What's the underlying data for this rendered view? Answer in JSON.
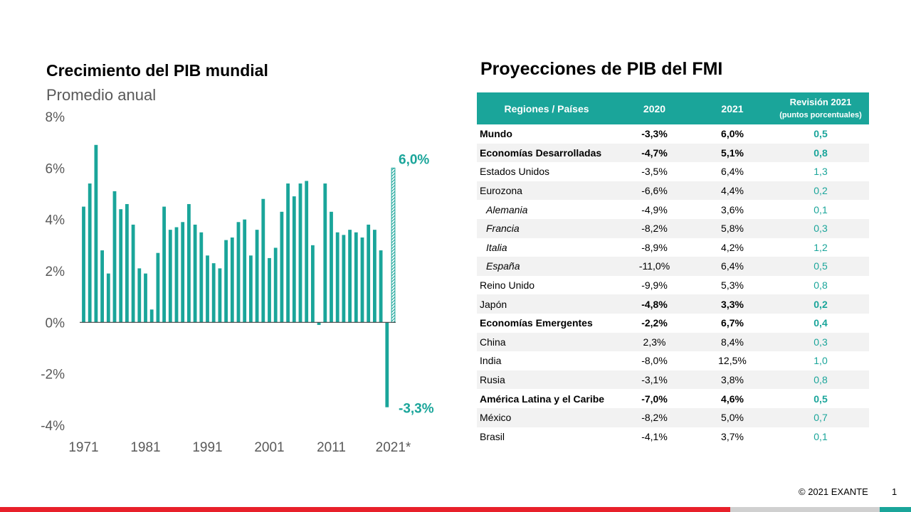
{
  "left": {
    "title": "Crecimiento del PIB mundial",
    "subtitle": "Promedio anual"
  },
  "chart_data": {
    "type": "bar",
    "title": "Crecimiento del PIB mundial",
    "subtitle": "Promedio anual",
    "ylim": [
      -4,
      8
    ],
    "yticks": [
      "8%",
      "6%",
      "4%",
      "2%",
      "0%",
      "-2%",
      "-4%"
    ],
    "ytick_values": [
      8,
      6,
      4,
      2,
      0,
      -2,
      -4
    ],
    "xtick_labels": [
      "1971",
      "1981",
      "1991",
      "2001",
      "2011",
      "2021*"
    ],
    "xtick_years": [
      1971,
      1981,
      1991,
      2001,
      2011,
      2021
    ],
    "grid": false,
    "color": "#1aa59a",
    "years": [
      1971,
      1972,
      1973,
      1974,
      1975,
      1976,
      1977,
      1978,
      1979,
      1980,
      1981,
      1982,
      1983,
      1984,
      1985,
      1986,
      1987,
      1988,
      1989,
      1990,
      1991,
      1992,
      1993,
      1994,
      1995,
      1996,
      1997,
      1998,
      1999,
      2000,
      2001,
      2002,
      2003,
      2004,
      2005,
      2006,
      2007,
      2008,
      2009,
      2010,
      2011,
      2012,
      2013,
      2014,
      2015,
      2016,
      2017,
      2018,
      2019,
      2020,
      2021
    ],
    "values": [
      4.5,
      5.4,
      6.9,
      2.8,
      1.9,
      5.1,
      4.4,
      4.6,
      3.8,
      2.1,
      1.9,
      0.5,
      2.7,
      4.5,
      3.6,
      3.7,
      3.9,
      4.6,
      3.8,
      3.5,
      2.6,
      2.3,
      2.1,
      3.2,
      3.3,
      3.9,
      4.0,
      2.6,
      3.6,
      4.8,
      2.5,
      2.9,
      4.3,
      5.4,
      4.9,
      5.4,
      5.5,
      3.0,
      -0.1,
      5.4,
      4.3,
      3.5,
      3.4,
      3.6,
      3.5,
      3.3,
      3.8,
      3.6,
      2.8,
      -3.3,
      6.0
    ],
    "projected_year": 2021,
    "annotations": [
      {
        "year": 2021,
        "label": "6,0%"
      },
      {
        "year": 2020,
        "label": "-3,3%"
      }
    ]
  },
  "table": {
    "title": "Proyecciones de PIB del FMI",
    "headers": {
      "region": "Regiones / Países",
      "y2020": "2020",
      "y2021": "2021",
      "revision": "Revisión 2021",
      "revision_sub": "(puntos porcentuales)"
    },
    "rows": [
      {
        "name": "Mundo",
        "v2020": "-3,3%",
        "v2021": "6,0%",
        "rev": "0,5",
        "bold": true,
        "sub": false
      },
      {
        "name": "Economías Desarrolladas",
        "v2020": "-4,7%",
        "v2021": "5,1%",
        "rev": "0,8",
        "bold": true,
        "sub": false
      },
      {
        "name": "Estados Unidos",
        "v2020": "-3,5%",
        "v2021": "6,4%",
        "rev": "1,3",
        "bold": false,
        "sub": false
      },
      {
        "name": "Eurozona",
        "v2020": "-6,6%",
        "v2021": "4,4%",
        "rev": "0,2",
        "bold": false,
        "sub": false
      },
      {
        "name": "Alemania",
        "v2020": "-4,9%",
        "v2021": "3,6%",
        "rev": "0,1",
        "bold": false,
        "sub": true
      },
      {
        "name": "Francia",
        "v2020": "-8,2%",
        "v2021": "5,8%",
        "rev": "0,3",
        "bold": false,
        "sub": true
      },
      {
        "name": "Italia",
        "v2020": "-8,9%",
        "v2021": "4,2%",
        "rev": "1,2",
        "bold": false,
        "sub": true
      },
      {
        "name": "España",
        "v2020": "-11,0%",
        "v2021": "6,4%",
        "rev": "0,5",
        "bold": false,
        "sub": true
      },
      {
        "name": "Reino Unido",
        "v2020": "-9,9%",
        "v2021": "5,3%",
        "rev": "0,8",
        "bold": false,
        "sub": false
      },
      {
        "name": "Japón",
        "v2020": "-4,8%",
        "v2021": "3,3%",
        "rev": "0,2",
        "bold": false,
        "sub": false,
        "num_bold": true
      },
      {
        "name": "Economías Emergentes",
        "v2020": "-2,2%",
        "v2021": "6,7%",
        "rev": "0,4",
        "bold": true,
        "sub": false
      },
      {
        "name": "China",
        "v2020": "2,3%",
        "v2021": "8,4%",
        "rev": "0,3",
        "bold": false,
        "sub": false
      },
      {
        "name": "India",
        "v2020": "-8,0%",
        "v2021": "12,5%",
        "rev": "1,0",
        "bold": false,
        "sub": false
      },
      {
        "name": "Rusia",
        "v2020": "-3,1%",
        "v2021": "3,8%",
        "rev": "0,8",
        "bold": false,
        "sub": false
      },
      {
        "name": "América Latina y el Caribe",
        "v2020": "-7,0%",
        "v2021": "4,6%",
        "rev": "0,5",
        "bold": true,
        "sub": false
      },
      {
        "name": "México",
        "v2020": "-8,2%",
        "v2021": "5,0%",
        "rev": "0,7",
        "bold": false,
        "sub": false
      },
      {
        "name": "Brasil",
        "v2020": "-4,1%",
        "v2021": "3,7%",
        "rev": "0,1",
        "bold": false,
        "sub": false
      }
    ]
  },
  "footer": {
    "copyright": "© 2021 EXANTE",
    "page": "1"
  },
  "colors": {
    "accent": "#1aa59a",
    "red": "#e8202a",
    "gray": "#d0d0d0",
    "stripe": "#f2f2f2"
  }
}
